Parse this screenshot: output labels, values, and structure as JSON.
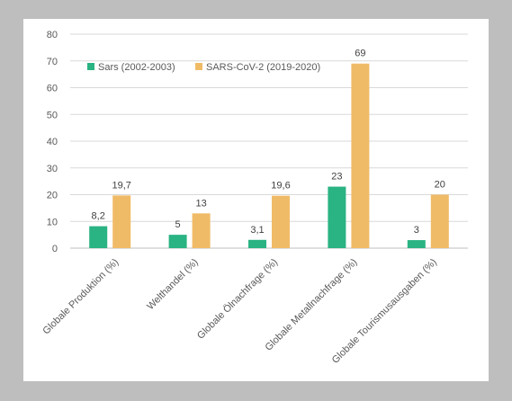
{
  "colors": {
    "outer_background": "#bebebe",
    "panel_background": "#ffffff",
    "gridline": "#d9d9d9",
    "series_sars": "#2ab383",
    "series_sars_cov_2": "#f0bb67",
    "text": "#595959"
  },
  "chart_data": {
    "type": "bar",
    "title": "",
    "xlabel": "",
    "ylabel": "",
    "ylim": [
      0,
      80
    ],
    "yticks": [
      0,
      10,
      20,
      30,
      40,
      50,
      60,
      70,
      80
    ],
    "grid": true,
    "legend_position": "top-left",
    "categories": [
      "Globale Produktion (%)",
      "Welthandel (%)",
      "Globale Ölnachfrage (%)",
      "Globale Metallnachfrage (%)",
      "Globale Tourismusausgaben (%)"
    ],
    "series": [
      {
        "name": "Sars (2002-2003)",
        "color": "#2ab383",
        "values": [
          8.2,
          5,
          3.1,
          23,
          3
        ],
        "labels": [
          "8,2",
          "5",
          "3,1",
          "23",
          "3"
        ]
      },
      {
        "name": "SARS-CoV-2 (2019-2020)",
        "color": "#f0bb67",
        "values": [
          19.7,
          13,
          19.6,
          69,
          20
        ],
        "labels": [
          "19,7",
          "13",
          "19,6",
          "69",
          "20"
        ]
      }
    ]
  }
}
